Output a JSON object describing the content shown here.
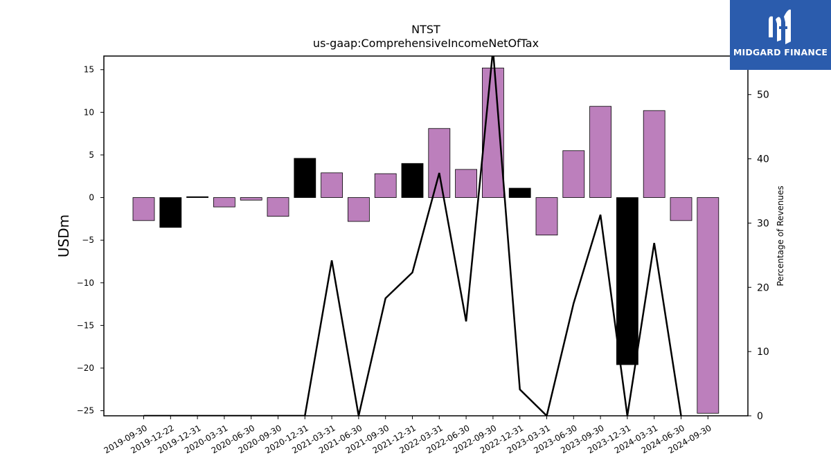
{
  "chart_data": {
    "type": "bar",
    "title": "NTST",
    "subtitle": "us-gaap:ComprehensiveIncomeNetOfTax",
    "ylabel": "USDm",
    "y2label": "Percentage of Revenues",
    "ylim": [
      -25.6,
      16.6
    ],
    "y2lim": [
      0,
      56
    ],
    "yticks": [
      -25,
      -20,
      -15,
      -10,
      -5,
      0,
      5,
      10,
      15
    ],
    "y2ticks": [
      0,
      10,
      20,
      30,
      40,
      50
    ],
    "categories": [
      "2019-09-30",
      "2019-12-22",
      "2019-12-31",
      "2020-03-31",
      "2020-06-30",
      "2020-09-30",
      "2020-12-31",
      "2021-03-31",
      "2021-06-30",
      "2021-09-30",
      "2021-12-31",
      "2022-03-31",
      "2022-06-30",
      "2022-09-30",
      "2022-12-31",
      "2023-03-31",
      "2023-06-30",
      "2023-09-30",
      "2023-12-31",
      "2024-03-31",
      "2024-06-30",
      "2024-09-30"
    ],
    "series": [
      {
        "kind": "bar",
        "values": [
          -2.7,
          -3.5,
          0.1,
          -1.1,
          -0.3,
          -2.2,
          4.6,
          2.9,
          -2.8,
          2.8,
          4.0,
          8.1,
          3.3,
          15.2,
          1.1,
          -4.4,
          5.5,
          10.7,
          -19.6,
          10.2,
          -2.7,
          -25.3
        ],
        "colors": [
          "#bc7fbc",
          "#000000",
          "#000000",
          "#bc7fbc",
          "#bc7fbc",
          "#bc7fbc",
          "#000000",
          "#bc7fbc",
          "#bc7fbc",
          "#bc7fbc",
          "#000000",
          "#bc7fbc",
          "#bc7fbc",
          "#bc7fbc",
          "#000000",
          "#bc7fbc",
          "#bc7fbc",
          "#bc7fbc",
          "#000000",
          "#bc7fbc",
          "#bc7fbc",
          "#bc7fbc"
        ]
      },
      {
        "kind": "line",
        "axis": "right",
        "color": "#000000",
        "values": [
          0,
          0,
          0,
          0,
          0,
          0,
          0,
          24.2,
          0,
          18.3,
          22.3,
          37.8,
          14.7,
          57.0,
          4.1,
          0,
          17.5,
          31.3,
          0,
          26.9,
          0,
          null
        ]
      }
    ],
    "legend": "none",
    "grid": false
  },
  "logo": {
    "text": "MIDGARD FINANCE",
    "bg_color": "#2b5cad"
  }
}
